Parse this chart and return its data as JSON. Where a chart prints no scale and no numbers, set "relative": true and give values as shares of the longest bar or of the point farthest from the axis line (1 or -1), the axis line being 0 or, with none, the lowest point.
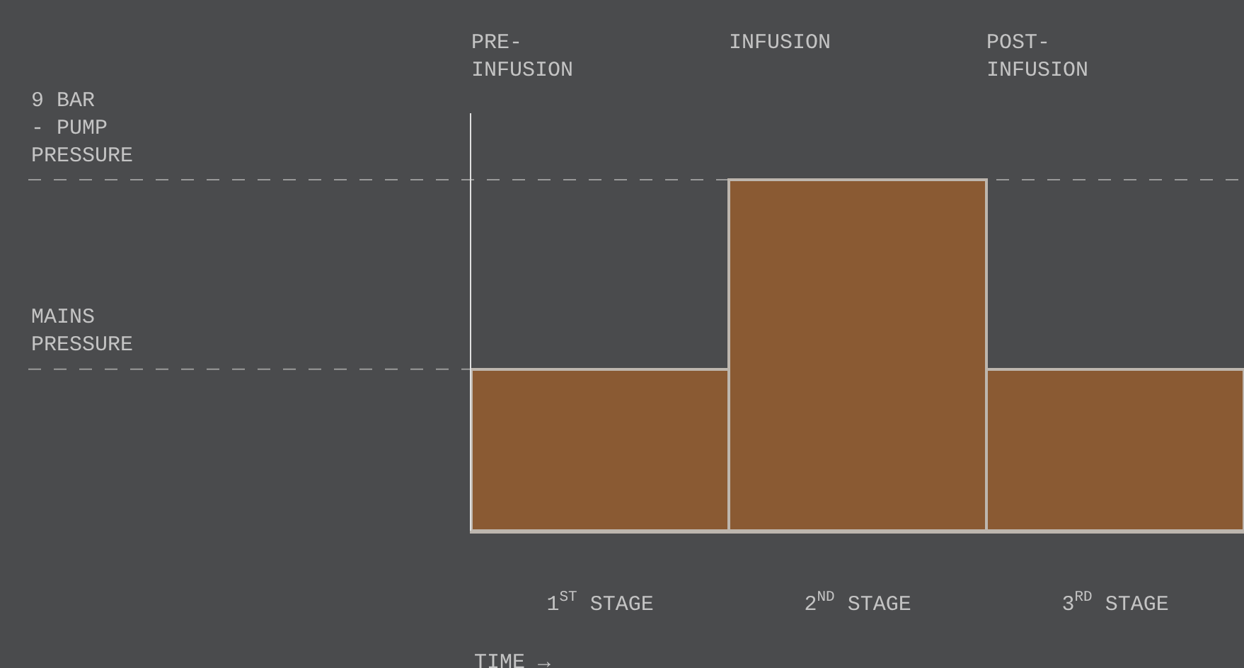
{
  "chart_data": {
    "type": "bar",
    "relative": true,
    "categories": [
      "1$^{ST}$ STAGE",
      "2$^{ND}$ STAGE",
      "3$^{RD}$ STAGE"
    ],
    "series": [
      {
        "color": "#8a5a33",
        "values": [
          0.46,
          1,
          0.46
        ]
      }
    ],
    "xlabel": "TIME →",
    "annotations": [
      "PRE-\nINFUSION",
      "INFUSION",
      "POST-\nINFUSION"
    ],
    "ref_lines": [
      {
        "axis": "y",
        "value": 1,
        "label": "9 BAR\n- PUMP\nPRESSURE",
        "line_style": "dashed"
      },
      {
        "axis": "y",
        "value": 0.46,
        "label": "MAINS\nPRESSURE",
        "line_style": "dashed"
      }
    ]
  }
}
